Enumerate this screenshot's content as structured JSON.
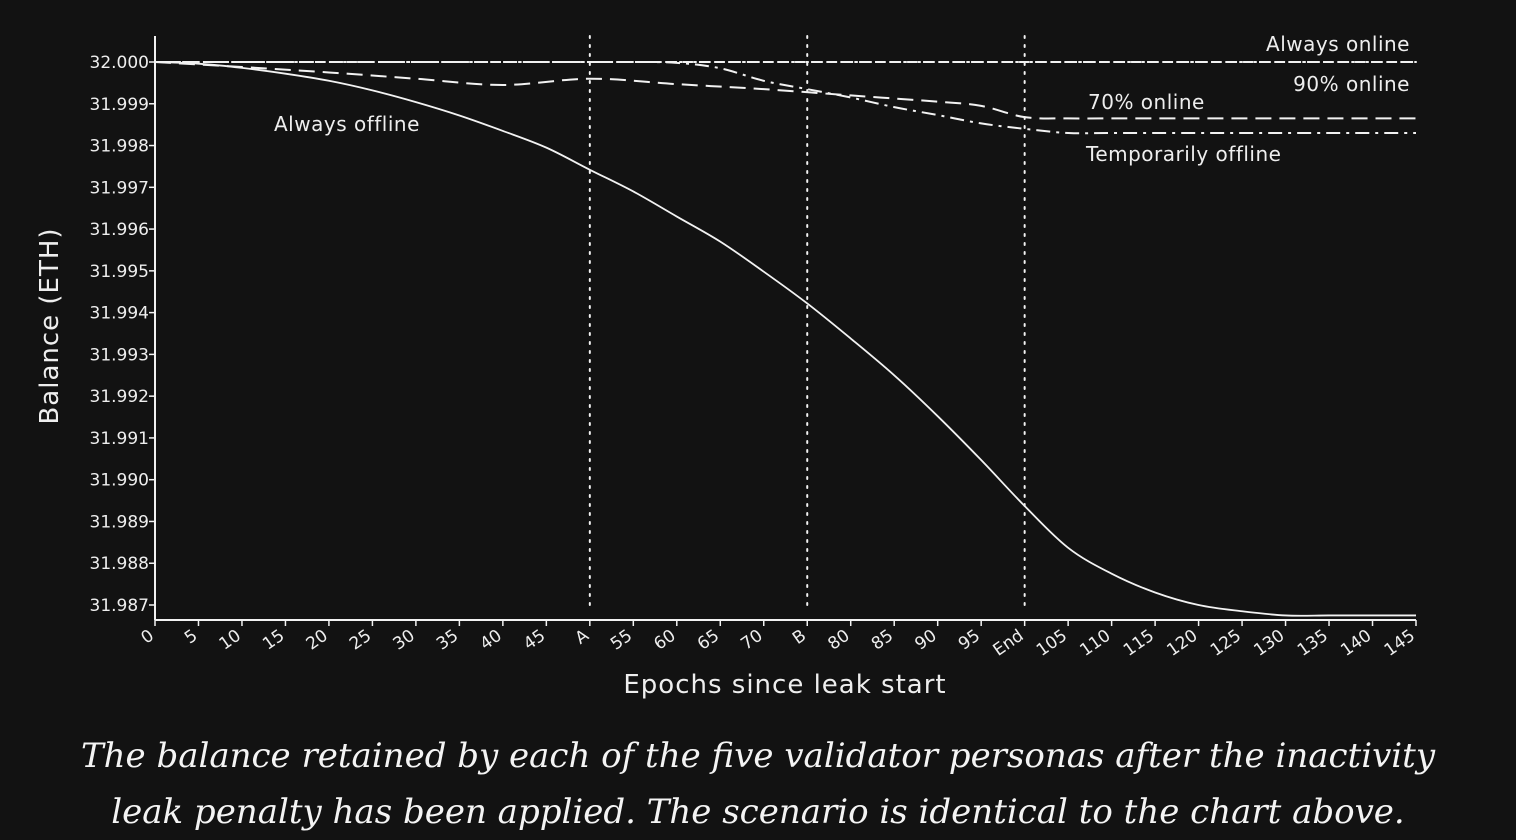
{
  "chart_data": {
    "type": "line",
    "title": "",
    "xlabel": "Epochs since leak start",
    "ylabel": "Balance (ETH)",
    "xlim": [
      0,
      145
    ],
    "ylim": [
      31.987,
      32.0
    ],
    "x_tick_labels": [
      "0",
      "5",
      "10",
      "15",
      "20",
      "25",
      "30",
      "35",
      "40",
      "45",
      "A",
      "55",
      "60",
      "65",
      "70",
      "B",
      "80",
      "85",
      "90",
      "95",
      "End",
      "105",
      "110",
      "115",
      "120",
      "125",
      "130",
      "135",
      "140",
      "145"
    ],
    "y_tick_labels": [
      "32.000",
      "31.999",
      "31.998",
      "31.997",
      "31.996",
      "31.995",
      "31.994",
      "31.993",
      "31.992",
      "31.991",
      "31.990",
      "31.989",
      "31.988",
      "31.987"
    ],
    "vertical_markers": [
      {
        "label": "A",
        "x": 50
      },
      {
        "label": "B",
        "x": 75
      },
      {
        "label": "End",
        "x": 100
      }
    ],
    "series": [
      {
        "name": "Always online",
        "style": "dotted",
        "x": [
          0,
          145
        ],
        "y": [
          32.0,
          32.0
        ]
      },
      {
        "name": "90% online",
        "style": "dashed-dotted-overlay",
        "x": [
          0,
          145
        ],
        "y": [
          32.0,
          32.0
        ]
      },
      {
        "name": "70% online",
        "style": "dashed",
        "x": [
          0,
          10,
          20,
          30,
          40,
          50,
          60,
          70,
          80,
          90,
          95,
          100,
          105,
          110,
          120,
          130,
          140,
          145
        ],
        "y": [
          32.0,
          31.99988,
          31.99975,
          31.9996,
          31.99945,
          31.9996,
          31.99947,
          31.99935,
          31.9992,
          31.99905,
          31.99895,
          31.99868,
          31.99865,
          31.99865,
          31.99865,
          31.99865,
          31.99865,
          31.99865
        ]
      },
      {
        "name": "Temporarily offline",
        "style": "dash-dot",
        "x": [
          0,
          50,
          55,
          60,
          65,
          70,
          75,
          80,
          85,
          90,
          95,
          100,
          105,
          110,
          120,
          130,
          140,
          145
        ],
        "y": [
          32.0,
          32.0,
          32.0,
          31.99998,
          31.99985,
          31.99955,
          31.99935,
          31.99915,
          31.99892,
          31.99873,
          31.99853,
          31.9984,
          31.9983,
          31.9983,
          31.9983,
          31.9983,
          31.9983,
          31.9983
        ]
      },
      {
        "name": "Always offline",
        "style": "solid",
        "x": [
          0,
          5,
          10,
          15,
          20,
          25,
          30,
          35,
          40,
          45,
          50,
          55,
          60,
          65,
          70,
          75,
          80,
          85,
          90,
          95,
          100,
          105,
          110,
          115,
          120,
          125,
          130,
          135,
          140,
          145
        ],
        "y": [
          32.0,
          31.99996,
          31.99986,
          31.99972,
          31.99955,
          31.99932,
          31.99904,
          31.99872,
          31.99835,
          31.99795,
          31.99742,
          31.9969,
          31.9963,
          31.9957,
          31.99498,
          31.99422,
          31.99338,
          31.9925,
          31.99152,
          31.99047,
          31.98937,
          31.98837,
          31.98775,
          31.9873,
          31.987,
          31.98685,
          31.98675,
          31.98675,
          31.98675,
          31.98675
        ]
      }
    ],
    "annotations": [
      {
        "text": "Always online",
        "series": "Always online"
      },
      {
        "text": "90% online",
        "series": "90% online"
      },
      {
        "text": "70% online",
        "series": "70% online"
      },
      {
        "text": "Temporarily offline",
        "series": "Temporarily offline"
      },
      {
        "text": "Always offline",
        "series": "Always offline"
      }
    ],
    "grid": false,
    "legend": "none"
  },
  "caption": {
    "line1": "The balance retained by each of the five validator personas after the inactivity",
    "line2": "leak penalty has been applied. The scenario is identical to the chart above."
  },
  "colors": {
    "background": "#121212",
    "foreground": "#f2f2f2"
  }
}
